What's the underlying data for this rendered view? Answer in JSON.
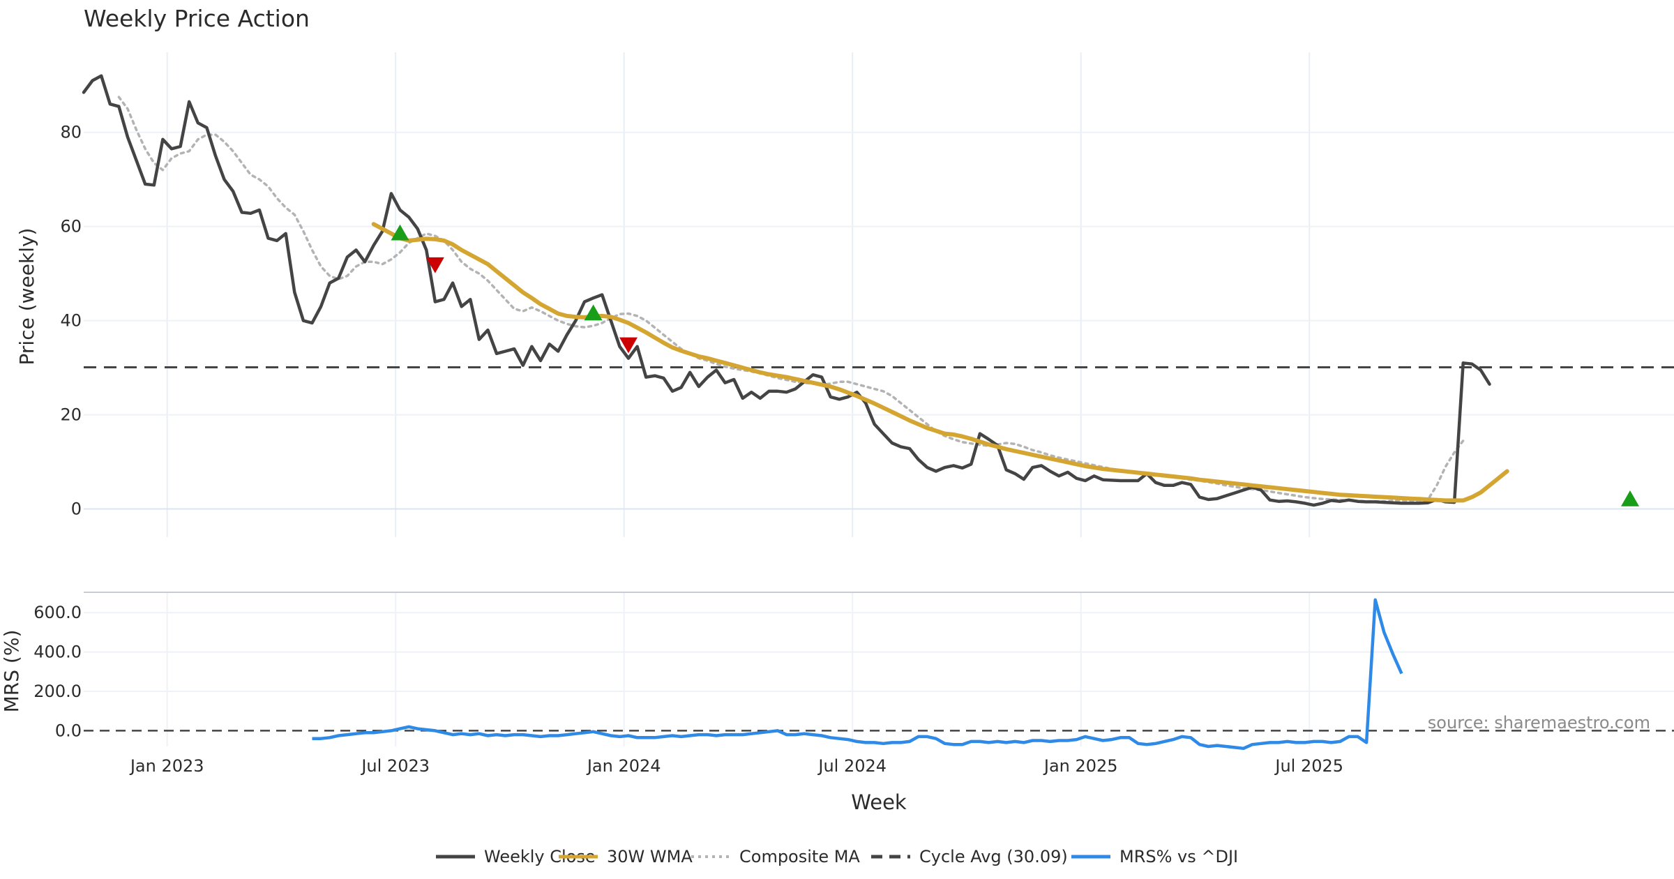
{
  "chart_data": [
    {
      "type": "line",
      "title": "Weekly Price Action",
      "ylabel": "Price (weekly)",
      "xlabel": "",
      "ylim": [
        -6,
        97
      ],
      "yticks": [
        0,
        20,
        40,
        60,
        80
      ],
      "ytick_labels": [
        "0",
        "20",
        "40",
        "60",
        "80"
      ],
      "xlim": [
        0,
        181
      ],
      "grid": true,
      "cycle_avg": 30.09,
      "series": [
        {
          "name": "Weekly Close",
          "color": "#444444",
          "start_index": 0,
          "values": [
            88.5,
            91.0,
            92.0,
            86.0,
            85.5,
            79.0,
            74.0,
            69.0,
            68.8,
            78.5,
            76.5,
            77.0,
            86.5,
            82.0,
            81.0,
            75.0,
            70.0,
            67.5,
            63.0,
            62.8,
            63.5,
            57.5,
            57.0,
            58.5,
            46.0,
            40.0,
            39.5,
            43.0,
            48.0,
            49.0,
            53.5,
            55.0,
            52.5,
            56.0,
            59.0,
            67.0,
            63.5,
            62.0,
            59.5,
            55.0,
            44.0,
            44.5,
            48.0,
            43.0,
            44.5,
            36.0,
            38.0,
            33.0,
            33.5,
            34.0,
            30.5,
            34.5,
            31.5,
            35.0,
            33.5,
            37.0,
            40.0,
            44.0,
            44.8,
            45.5,
            40.0,
            34.5,
            32.0,
            34.5,
            28.0,
            28.3,
            27.8,
            25.0,
            25.8,
            29.0,
            26.0,
            28.0,
            29.5,
            26.8,
            27.5,
            23.5,
            24.8,
            23.5,
            25.0,
            25.0,
            24.8,
            25.5,
            27.0,
            28.5,
            28.0,
            23.8,
            23.3,
            23.8,
            24.8,
            22.5,
            18.0,
            16.0,
            14.0,
            13.2,
            12.8,
            10.5,
            8.8,
            8.0,
            8.8,
            9.2,
            8.7,
            9.5,
            16.0,
            14.8,
            13.5,
            8.3,
            7.5,
            6.3,
            8.8,
            9.2,
            8.0,
            7.0,
            7.8,
            6.5,
            6.0,
            7.0,
            6.2,
            6.1,
            6.0,
            6.0,
            6.0,
            7.5,
            5.6,
            5.0,
            5.0,
            5.6,
            5.2,
            2.5,
            2.0,
            2.2,
            2.8,
            3.4,
            4.0,
            4.6,
            4.0,
            1.9,
            1.6,
            1.7,
            1.5,
            1.2,
            0.8,
            1.2,
            1.8,
            1.6,
            1.9,
            1.6,
            1.5,
            1.5,
            1.4,
            1.3,
            1.2,
            1.2,
            1.2,
            1.3,
            2.0,
            1.5,
            1.4,
            31.0,
            30.8,
            29.5,
            26.5
          ]
        },
        {
          "name": "30W WMA",
          "color": "#d4a531",
          "start_index": 33,
          "values": [
            60.5,
            59.5,
            58.5,
            57.5,
            57.0,
            57.2,
            57.4,
            57.3,
            57.0,
            56.2,
            55.0,
            54.0,
            53.0,
            52.0,
            50.5,
            49.0,
            47.5,
            46.0,
            44.8,
            43.5,
            42.5,
            41.5,
            41.0,
            40.8,
            40.7,
            40.9,
            41.0,
            40.8,
            40.2,
            39.5,
            38.5,
            37.5,
            36.4,
            35.3,
            34.3,
            33.6,
            33.0,
            32.4,
            32.0,
            31.5,
            31.0,
            30.5,
            30.0,
            29.5,
            29.0,
            28.6,
            28.3,
            28.0,
            27.6,
            27.2,
            26.8,
            26.4,
            26.0,
            25.4,
            24.7,
            24.0,
            23.2,
            22.4,
            21.5,
            20.6,
            19.7,
            18.8,
            18.0,
            17.2,
            16.6,
            16.0,
            15.8,
            15.4,
            14.9,
            14.3,
            13.7,
            13.2,
            12.7,
            12.3,
            11.9,
            11.5,
            11.1,
            10.7,
            10.3,
            9.9,
            9.5,
            9.1,
            8.8,
            8.5,
            8.3,
            8.1,
            7.9,
            7.7,
            7.5,
            7.3,
            7.1,
            6.9,
            6.7,
            6.5,
            6.2,
            6.0,
            5.8,
            5.6,
            5.4,
            5.2,
            5.0,
            4.8,
            4.6,
            4.4,
            4.2,
            4.0,
            3.8,
            3.6,
            3.4,
            3.2,
            3.0,
            2.9,
            2.8,
            2.7,
            2.6,
            2.5,
            2.4,
            2.3,
            2.2,
            2.1,
            2.0,
            1.9,
            1.8,
            1.8,
            1.8,
            2.5,
            3.5,
            5.0,
            6.5,
            8.0
          ]
        },
        {
          "name": "Composite MA",
          "color": "#b3b3b3",
          "start_index": 4,
          "values": [
            87.5,
            85.0,
            80.5,
            76.5,
            73.5,
            72.0,
            74.5,
            75.5,
            76.0,
            78.5,
            79.5,
            79.5,
            78.0,
            76.0,
            73.5,
            71.0,
            70.0,
            68.5,
            66.0,
            64.0,
            62.5,
            59.0,
            55.0,
            51.5,
            49.5,
            48.8,
            49.5,
            51.5,
            52.5,
            52.5,
            52.0,
            53.0,
            54.5,
            56.5,
            57.5,
            58.5,
            58.0,
            57.0,
            55.0,
            52.5,
            51.0,
            50.0,
            48.5,
            46.5,
            44.5,
            42.5,
            42.0,
            42.8,
            42.0,
            41.0,
            40.0,
            39.3,
            38.8,
            38.6,
            38.9,
            39.5,
            40.5,
            41.4,
            41.5,
            41.0,
            40.0,
            38.5,
            37.0,
            35.5,
            34.0,
            33.0,
            32.0,
            31.5,
            30.8,
            30.2,
            29.8,
            29.5,
            29.2,
            28.8,
            28.3,
            27.8,
            27.4,
            27.0,
            26.8,
            26.6,
            26.4,
            26.6,
            27.0,
            27.0,
            26.5,
            26.0,
            25.5,
            25.0,
            24.0,
            22.5,
            21.0,
            19.5,
            18.0,
            16.5,
            15.5,
            14.8,
            14.2,
            13.9,
            13.6,
            13.4,
            13.7,
            14.0,
            13.8,
            13.2,
            12.5,
            12.0,
            11.4,
            10.9,
            10.5,
            10.1,
            9.7,
            9.3,
            8.9,
            8.5,
            8.2,
            7.9,
            7.6,
            7.3,
            7.1,
            6.9,
            6.7,
            6.5,
            6.2,
            6.0,
            5.7,
            5.4,
            5.0,
            4.7,
            4.4,
            4.2,
            4.0,
            3.7,
            3.4,
            3.1,
            2.8,
            2.5,
            2.3,
            2.1,
            2.0,
            1.9,
            1.8,
            1.7,
            1.6,
            1.6,
            1.6,
            1.7,
            1.8,
            1.7,
            1.6,
            2.0,
            5.0,
            9.0,
            12.0,
            14.5
          ]
        }
      ],
      "signals": [
        {
          "type": "buy",
          "index": 36,
          "value": 58.5,
          "color": "#1a9e1a"
        },
        {
          "type": "sell",
          "index": 40,
          "value": 52.0,
          "color": "#cc0000"
        },
        {
          "type": "buy",
          "index": 58,
          "value": 41.5,
          "color": "#1a9e1a"
        },
        {
          "type": "sell",
          "index": 62,
          "value": 35.0,
          "color": "#cc0000"
        },
        {
          "type": "buy",
          "index": 176,
          "value": 2.0,
          "color": "#1a9e1a"
        }
      ]
    },
    {
      "type": "line",
      "title": "",
      "ylabel": "MRS (%)",
      "xlabel": "Week",
      "ylim": [
        -80,
        700
      ],
      "yticks": [
        0,
        200,
        400,
        600
      ],
      "ytick_labels": [
        "0.0",
        "200.0",
        "400.0",
        "600.0"
      ],
      "xlim": [
        0,
        181
      ],
      "x_tick_labels": [
        "Jan 2023",
        "Jul 2023",
        "Jan 2024",
        "Jul 2024",
        "Jan 2025",
        "Jul 2025"
      ],
      "x_tick_positions": [
        9.5,
        35.5,
        61.5,
        87.5,
        113.5,
        139.5
      ],
      "grid": true,
      "zero_line": 0,
      "annotation": "source: sharemaestro.com",
      "series": [
        {
          "name": "MRS% vs ^DJI",
          "color": "#2e8ae6",
          "start_index": 26,
          "values": [
            -40,
            -40,
            -35,
            -25,
            -20,
            -15,
            -10,
            -10,
            -5,
            0,
            10,
            20,
            10,
            5,
            0,
            -10,
            -20,
            -15,
            -20,
            -15,
            -25,
            -20,
            -25,
            -20,
            -20,
            -25,
            -30,
            -25,
            -25,
            -20,
            -15,
            -10,
            -5,
            -15,
            -25,
            -30,
            -25,
            -35,
            -35,
            -35,
            -30,
            -25,
            -30,
            -25,
            -20,
            -20,
            -25,
            -20,
            -20,
            -20,
            -15,
            -10,
            -5,
            0,
            -20,
            -20,
            -15,
            -20,
            -25,
            -35,
            -40,
            -45,
            -55,
            -60,
            -60,
            -65,
            -60,
            -60,
            -55,
            -30,
            -30,
            -40,
            -65,
            -70,
            -70,
            -55,
            -55,
            -60,
            -55,
            -60,
            -55,
            -60,
            -50,
            -50,
            -55,
            -50,
            -50,
            -45,
            -30,
            -40,
            -50,
            -45,
            -35,
            -35,
            -65,
            -70,
            -65,
            -55,
            -45,
            -30,
            -35,
            -70,
            -80,
            -75,
            -80,
            -85,
            -90,
            -70,
            -65,
            -60,
            -60,
            -55,
            -60,
            -60,
            -55,
            -55,
            -60,
            -55,
            -30,
            -30,
            -60,
            665,
            500,
            390,
            290
          ]
        }
      ]
    }
  ],
  "legend": {
    "placement": "bottom-center",
    "items": [
      {
        "label": "Weekly Close",
        "style": "solid",
        "color": "#444444"
      },
      {
        "label": "30W WMA",
        "style": "solid",
        "color": "#d4a531"
      },
      {
        "label": "Composite MA",
        "style": "dotted",
        "color": "#b3b3b3"
      },
      {
        "label": "Cycle Avg (30.09)",
        "style": "dashed",
        "color": "#444444"
      },
      {
        "label": "MRS% vs ^DJI",
        "style": "solid",
        "color": "#2e8ae6"
      }
    ]
  }
}
